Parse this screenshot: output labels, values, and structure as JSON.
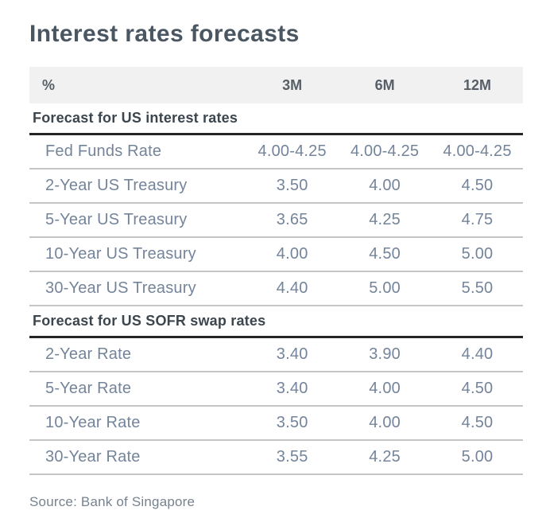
{
  "colors": {
    "title_text": "#4a5662",
    "section_header_text": "#3c464e",
    "column_header_text": "#575f67",
    "row_text": "#74849a",
    "header_background": "#f1f1f2",
    "heavy_rule": "#232527",
    "light_rule": "#c3c5c7"
  },
  "chart_data": {
    "type": "table",
    "title": "Interest rates forecasts",
    "unit": "%",
    "columns": [
      "3M",
      "6M",
      "12M"
    ],
    "sections": [
      {
        "header": "Forecast for US interest rates",
        "rows": [
          {
            "label": "Fed Funds Rate",
            "values": [
              "4.00-4.25",
              "4.00-4.25",
              "4.00-4.25"
            ]
          },
          {
            "label": "2-Year US Treasury",
            "values": [
              "3.50",
              "4.00",
              "4.50"
            ]
          },
          {
            "label": "5-Year US Treasury",
            "values": [
              "3.65",
              "4.25",
              "4.75"
            ]
          },
          {
            "label": "10-Year US Treasury",
            "values": [
              "4.00",
              "4.50",
              "5.00"
            ]
          },
          {
            "label": "30-Year US Treasury",
            "values": [
              "4.40",
              "5.00",
              "5.50"
            ]
          }
        ]
      },
      {
        "header": "Forecast for US SOFR swap rates",
        "rows": [
          {
            "label": "2-Year Rate",
            "values": [
              "3.40",
              "3.90",
              "4.40"
            ]
          },
          {
            "label": "5-Year Rate",
            "values": [
              "3.40",
              "4.00",
              "4.50"
            ]
          },
          {
            "label": "10-Year Rate",
            "values": [
              "3.50",
              "4.00",
              "4.50"
            ]
          },
          {
            "label": "30-Year Rate",
            "values": [
              "3.55",
              "4.25",
              "5.00"
            ]
          }
        ]
      }
    ],
    "source": "Source: Bank of Singapore"
  }
}
